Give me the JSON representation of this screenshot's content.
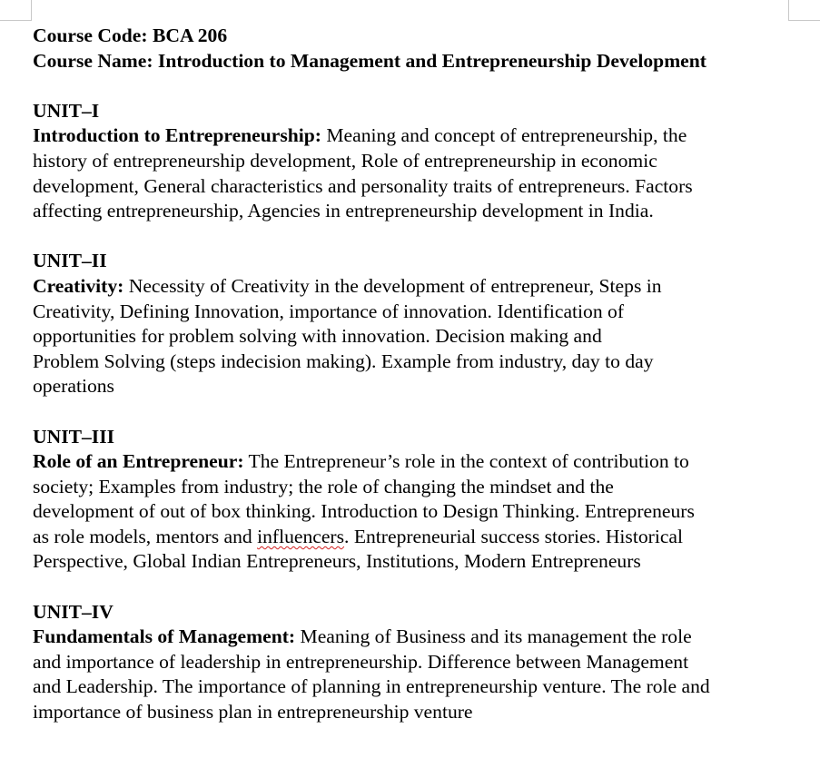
{
  "header": {
    "course_code": "Course Code: BCA 206",
    "course_name": "Course Name: Introduction to Management and Entrepreneurship Development"
  },
  "units": [
    {
      "heading": "UNIT–I",
      "topic": "Introduction to Entrepreneurship:",
      "lines": [
        " Meaning and concept of entrepreneurship, the",
        "history of entrepreneurship development, Role of entrepreneurship in economic",
        "development, General characteristics and personality traits of entrepreneurs. Factors",
        "affecting entrepreneurship, Agencies in entrepreneurship development in India."
      ]
    },
    {
      "heading": "UNIT–II",
      "topic": "Creativity:",
      "lines": [
        " Necessity of Creativity in the development of entrepreneur, Steps in",
        "Creativity, Defining Innovation, importance of innovation. Identification of",
        "opportunities for problem solving with innovation. Decision making and",
        "Problem Solving (steps indecision making). Example from industry, day to day",
        "operations"
      ]
    },
    {
      "heading": "UNIT–III",
      "topic": "Role of an Entrepreneur:",
      "lines": [
        " The Entrepreneur’s role in the context of contribution to",
        "society; Examples from industry; the role of changing the mindset and the",
        "development of out of box thinking. Introduction to Design Thinking. Entrepreneurs",
        "as role models, mentors and ",
        "influencers",
        ". Entrepreneurial success stories. Historical",
        "Perspective, Global Indian Entrepreneurs, Institutions, Modern Entrepreneurs"
      ]
    },
    {
      "heading": "UNIT–IV",
      "topic": "Fundamentals of Management:",
      "lines": [
        " Meaning of Business and its management the role",
        "and importance of leadership in entrepreneurship. Difference between Management",
        "and Leadership. The importance of planning in entrepreneurship venture. The role and",
        "importance of business plan in entrepreneurship venture"
      ]
    }
  ],
  "colors": {
    "text": "#000000",
    "spellcheck_underline": "#d22020",
    "margin_marks": "#c8c8c8"
  }
}
